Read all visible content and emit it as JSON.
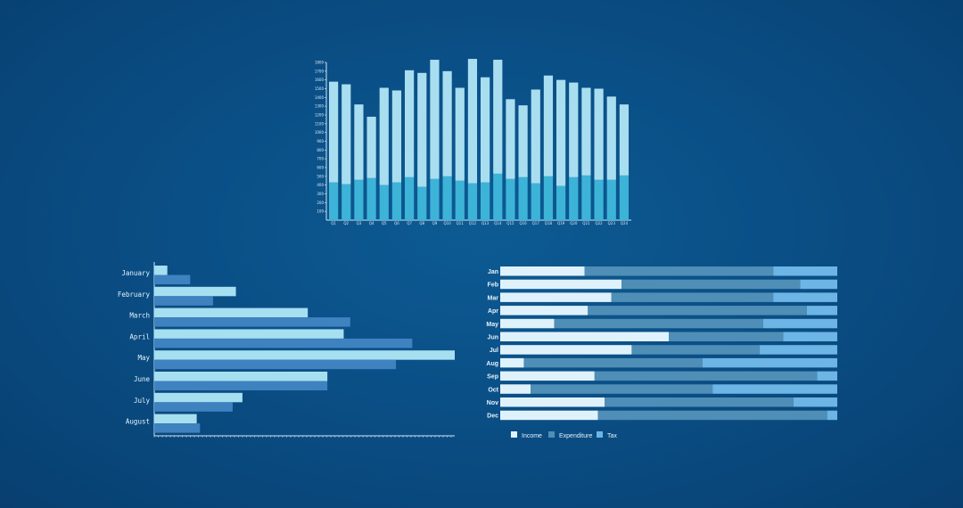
{
  "colors": {
    "light": "#a9def0",
    "mid": "#3db3d8",
    "bar_light": "#a6dff0",
    "bar_dark": "#3f82c0",
    "income": "#dff2fb",
    "expenditure": "#4f8eb6",
    "tax": "#6cb5e4",
    "axis": "#cfe6f4"
  },
  "chart_data": [
    {
      "type": "bar",
      "stacked": true,
      "categories": [
        "Q1",
        "Q2",
        "Q3",
        "Q4",
        "Q5",
        "Q6",
        "Q7",
        "Q8",
        "Q9",
        "Q10",
        "Q11",
        "Q12",
        "Q13",
        "Q14",
        "Q15",
        "Q16",
        "Q17",
        "Q18",
        "Q19",
        "Q20",
        "Q21",
        "Q22",
        "Q23",
        "Q24"
      ],
      "series": [
        {
          "values": [
            430,
            410,
            460,
            480,
            400,
            430,
            490,
            380,
            470,
            500,
            450,
            420,
            430,
            530,
            470,
            490,
            420,
            500,
            390,
            490,
            510,
            460,
            460,
            510
          ]
        },
        {
          "values": [
            1150,
            1140,
            860,
            700,
            1110,
            1050,
            1220,
            1300,
            1360,
            1200,
            1060,
            1420,
            1200,
            1300,
            910,
            820,
            1070,
            1150,
            1210,
            1080,
            1000,
            1040,
            950,
            810
          ]
        }
      ],
      "yticks": [
        100,
        200,
        300,
        400,
        500,
        600,
        700,
        800,
        900,
        1000,
        1100,
        1200,
        1300,
        1400,
        1500,
        1600,
        1700,
        1800
      ],
      "ylim": [
        0,
        1800
      ],
      "grid": false
    },
    {
      "type": "bar",
      "orientation": "horizontal",
      "categories": [
        "January",
        "February",
        "March",
        "April",
        "May",
        "June",
        "July",
        "August"
      ],
      "series": [
        {
          "values": [
            4,
            25,
            47,
            58,
            92,
            53,
            27,
            13
          ]
        },
        {
          "values": [
            11,
            18,
            60,
            79,
            74,
            53,
            24,
            14
          ]
        }
      ],
      "xlim": [
        0,
        92
      ],
      "grid": false
    },
    {
      "type": "bar",
      "orientation": "horizontal",
      "stacked": true,
      "normalized": true,
      "categories": [
        "Jan",
        "Feb",
        "Mar",
        "Apr",
        "May",
        "Jun",
        "Jul",
        "Aug",
        "Sep",
        "Oct",
        "Nov",
        "Dec"
      ],
      "series": [
        {
          "name": "Income",
          "values": [
            25,
            36,
            33,
            26,
            16,
            50,
            39,
            7,
            28,
            9,
            31,
            29
          ]
        },
        {
          "name": "Expenditure",
          "values": [
            56,
            53,
            48,
            65,
            62,
            34,
            38,
            53,
            66,
            54,
            56,
            68
          ]
        },
        {
          "name": "Tax",
          "values": [
            19,
            11,
            19,
            9,
            22,
            16,
            23,
            40,
            6,
            37,
            13,
            3
          ]
        }
      ],
      "legend": "bottom"
    }
  ]
}
